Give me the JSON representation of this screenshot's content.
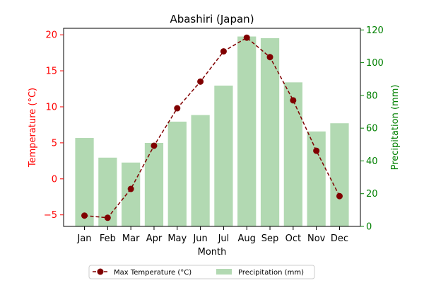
{
  "chart_data": {
    "type": "bar+line",
    "title": "Abashiri (Japan)",
    "xlabel": "Month",
    "categories": [
      "Jan",
      "Feb",
      "Mar",
      "Apr",
      "May",
      "Jun",
      "Jul",
      "Aug",
      "Sep",
      "Oct",
      "Nov",
      "Dec"
    ],
    "left_axis": {
      "label": "Temperature (°C)",
      "color": "#ff0000",
      "ylim": [
        -6.6,
        20.9
      ],
      "ticks": [
        -5,
        0,
        5,
        10,
        15,
        20
      ]
    },
    "right_axis": {
      "label": "Precipitation (mm)",
      "color": "#008000",
      "ylim": [
        0,
        121
      ],
      "ticks": [
        0,
        20,
        40,
        60,
        80,
        100,
        120
      ]
    },
    "series": [
      {
        "name": "Max Temperature (°C)",
        "kind": "line",
        "axis": "left",
        "color": "#800000",
        "line_style": "dashed",
        "marker": "circle",
        "values": [
          -5.1,
          -5.4,
          -1.4,
          4.6,
          9.8,
          13.5,
          17.7,
          19.6,
          16.9,
          10.9,
          3.9,
          -2.4
        ]
      },
      {
        "name": "Precipitation (mm)",
        "kind": "bar",
        "axis": "right",
        "color": "#b2d9b2",
        "values": [
          54,
          42,
          39,
          51,
          64,
          68,
          86,
          116,
          115,
          88,
          58,
          63
        ]
      }
    ],
    "legend_placement": "bottom-center",
    "grid": false
  }
}
